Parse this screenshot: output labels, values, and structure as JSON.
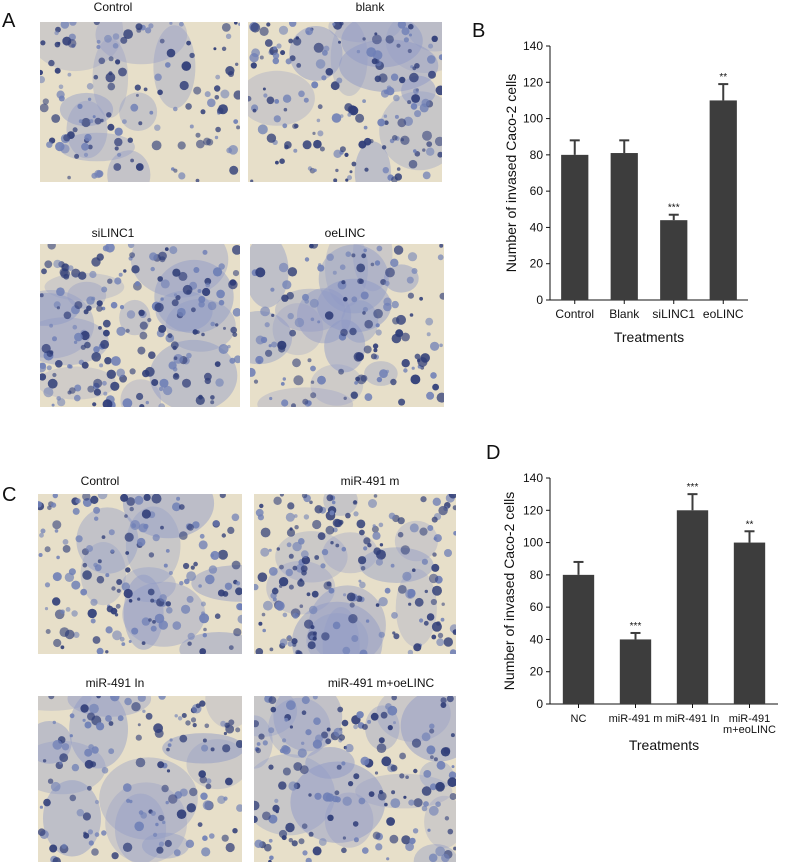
{
  "panels": {
    "A": {
      "letter": "A",
      "images": [
        {
          "label": "Control"
        },
        {
          "label": "blank"
        },
        {
          "label": "siLINC1"
        },
        {
          "label": "oeLINC"
        }
      ]
    },
    "C": {
      "letter": "C",
      "images": [
        {
          "label": "Control"
        },
        {
          "label": "miR-491 m"
        },
        {
          "label": "miR-491 In"
        },
        {
          "label": "miR-491 m+oeLINC"
        }
      ]
    }
  },
  "chart_data": [
    {
      "panel": "B",
      "type": "bar",
      "title": "",
      "xlabel": "Treatments",
      "ylabel": "Number of invased Caco-2 cells",
      "categories": [
        "Control",
        "Blank",
        "siLINC1",
        "eoLINC"
      ],
      "values": [
        80,
        81,
        44,
        110
      ],
      "errors": [
        8,
        7,
        3,
        9
      ],
      "annotations": [
        "",
        "",
        "***",
        "**"
      ],
      "ylim": [
        0,
        140
      ],
      "yticks": [
        0,
        20,
        40,
        60,
        80,
        100,
        120,
        140
      ],
      "bar_color": "#3d3d3d",
      "grid": false
    },
    {
      "panel": "D",
      "type": "bar",
      "title": "",
      "xlabel": "Treatments",
      "ylabel": "Number of invased Caco-2 cells",
      "categories": [
        [
          "NC"
        ],
        [
          "miR-491 m"
        ],
        [
          "miR-491 In"
        ],
        [
          "miR-491",
          "m+eoLINC"
        ]
      ],
      "values": [
        80,
        40,
        120,
        100
      ],
      "errors": [
        8,
        4,
        10,
        7
      ],
      "annotations": [
        "",
        "***",
        "***",
        "**"
      ],
      "ylim": [
        0,
        140
      ],
      "yticks": [
        0,
        20,
        40,
        60,
        80,
        100,
        120,
        140
      ],
      "bar_color": "#3d3d3d",
      "grid": false
    }
  ]
}
